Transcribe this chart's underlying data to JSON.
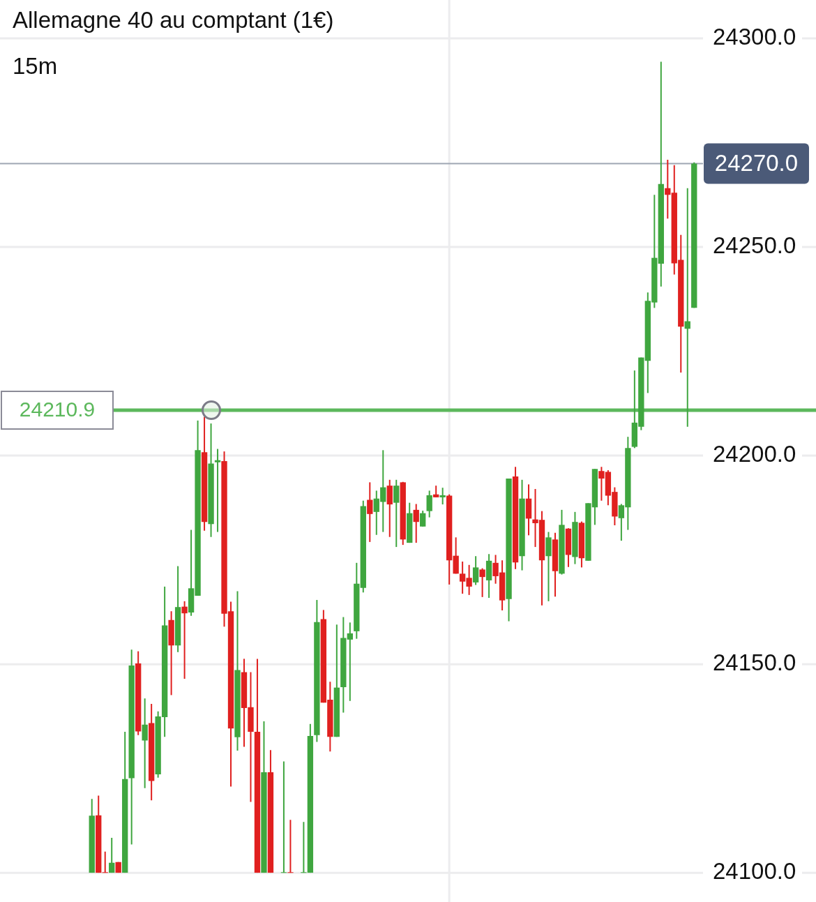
{
  "chart_data": {
    "type": "candlestick",
    "title": "Allemagne 40 au comptant (1€)",
    "subtitle": "15m",
    "categories": [
      null,
      null,
      null,
      null,
      null,
      null,
      null,
      null,
      null,
      null,
      null,
      null,
      null,
      null,
      null,
      null,
      null,
      null,
      null,
      null,
      null,
      null,
      null,
      null,
      null,
      null,
      null,
      null,
      null,
      null,
      null,
      null,
      null,
      null,
      null,
      null,
      null,
      null,
      null,
      null,
      null,
      null,
      null,
      null,
      null,
      null,
      null,
      null,
      null,
      null,
      null,
      null,
      null,
      null,
      null,
      null,
      null,
      null,
      null,
      null,
      null,
      null,
      null,
      null,
      null,
      null,
      null,
      null,
      null,
      null,
      null,
      null,
      null,
      null,
      null,
      null,
      null,
      null,
      null,
      null,
      null,
      null,
      null,
      null,
      null,
      null,
      null,
      null,
      null,
      null,
      null,
      null
    ],
    "ohlc": [
      [
        24100,
        24117.7,
        24100,
        24113.7
      ],
      [
        24113.8,
        24118.5,
        24100,
        24100
      ],
      [
        24100,
        24105.1,
        24100,
        24100
      ],
      [
        24100,
        24108.4,
        24100,
        24102.4
      ],
      [
        24102.6,
        24102.6,
        24100,
        24100
      ],
      [
        24100,
        24133.8,
        24100,
        24122.5
      ],
      [
        24122.7,
        24153.5,
        24106.8,
        24149.7
      ],
      [
        24150.2,
        24153.1,
        24133.0,
        24133.9
      ],
      [
        24131.7,
        24141.8,
        24120.3,
        24135.5
      ],
      [
        24135.9,
        24140.5,
        24117.4,
        24122.0
      ],
      [
        24123.6,
        24138.7,
        24122.8,
        24137.5
      ],
      [
        24137.3,
        24168.6,
        24132.6,
        24159.3
      ],
      [
        24160.6,
        24162.7,
        24142.6,
        24154.5
      ],
      [
        24154.5,
        24173.5,
        24152.9,
        24163.7
      ],
      [
        24163.8,
        24165.1,
        24146.5,
        24162.2
      ],
      [
        24162.4,
        24182.2,
        24161.6,
        24168.2
      ],
      [
        24166.4,
        24208.4,
        24166.4,
        24201.3
      ],
      [
        24200.8,
        24209.3,
        24182.0,
        24184.1
      ],
      [
        24183.6,
        24207.7,
        24180.5,
        24198.1
      ],
      [
        24198.4,
        24201.6,
        24181.7,
        24198.9
      ],
      [
        24198.7,
        24201.0,
        24159.0,
        24162.1
      ],
      [
        24162.7,
        24165.0,
        24120.7,
        24134.6
      ],
      [
        24132.5,
        24167.5,
        24129.3,
        24148.6
      ],
      [
        24148.1,
        24151.3,
        24130.2,
        24139.5
      ],
      [
        24139.7,
        24148.1,
        24117.0,
        24133.8
      ],
      [
        24133.8,
        24151.3,
        24100,
        24100
      ],
      [
        24100,
        24136.3,
        24100,
        24124.1
      ],
      [
        24124.1,
        24129.4,
        24100,
        24100
      ],
      null,
      [
        24100,
        24126.7,
        24100,
        24100
      ],
      [
        24100,
        24112.7,
        24100,
        24100
      ],
      null,
      [
        24100,
        24112.2,
        24100,
        24100
      ],
      [
        24100,
        24135.7,
        24100,
        24132.8
      ],
      [
        24133.0,
        24165.4,
        24131.4,
        24160.1
      ],
      [
        24160.8,
        24163.0,
        24140.8,
        24140.8
      ],
      [
        24141.5,
        24145.8,
        24129.1,
        24132.6
      ],
      [
        24132.6,
        24159.5,
        24132.6,
        24144.4
      ],
      [
        24144.5,
        24161.3,
        24138.4,
        24156.3
      ],
      [
        24155.9,
        24160.0,
        24141.2,
        24157.4
      ],
      [
        24157.9,
        24174.3,
        24156.1,
        24169.3
      ],
      [
        24168.3,
        24189.2,
        24167.2,
        24187.9
      ],
      [
        24189.4,
        24193.6,
        24179.3,
        24186.0
      ],
      [
        24186.5,
        24191.6,
        24181.0,
        24189.7
      ],
      [
        24188.9,
        24201.3,
        24181.7,
        24192.4
      ],
      [
        24192.8,
        24194.2,
        24180.5,
        24188.3
      ],
      [
        24188.7,
        24194.2,
        24178.1,
        24192.8
      ],
      [
        24193.6,
        24193.7,
        24178.6,
        24179.9
      ],
      [
        24179.1,
        24188.7,
        24179.1,
        24186.2
      ],
      [
        24187.0,
        24188.4,
        24179.1,
        24184.1
      ],
      [
        24183.0,
        24186.8,
        24183.0,
        24186.2
      ],
      [
        24186.7,
        24191.6,
        24185.2,
        24190.5
      ],
      [
        24190.7,
        24192.8,
        24190.0,
        24190.0
      ],
      [
        24190.0,
        24192.3,
        24188.3,
        24190.5
      ],
      [
        24190.4,
        24190.7,
        24169.1,
        24174.9
      ],
      [
        24176.0,
        24180.4,
        24171.7,
        24171.7
      ],
      [
        24171.7,
        24174.6,
        24166.9,
        24169.8
      ],
      [
        24170.7,
        24173.8,
        24166.6,
        24168.6
      ],
      [
        24169.6,
        24175.9,
        24169.0,
        24173.2
      ],
      [
        24172.7,
        24173.0,
        24166.1,
        24170.9
      ],
      [
        24170.1,
        24176.4,
        24165.9,
        24174.8
      ],
      [
        24174.3,
        24176.2,
        24169.3,
        24171.1
      ],
      [
        24172.0,
        24174.9,
        24162.9,
        24165.3
      ],
      [
        24165.6,
        24194.5,
        24160.3,
        24194.5
      ],
      [
        24195.0,
        24197.3,
        24172.8,
        24174.4
      ],
      [
        24175.9,
        24194.2,
        24172.5,
        24189.7
      ],
      [
        24189.7,
        24193.1,
        24180.9,
        24184.9
      ],
      [
        24184.7,
        24192.0,
        24178.1,
        24183.8
      ],
      [
        24184.6,
        24186.7,
        24164.1,
        24174.9
      ],
      [
        24175.9,
        24181.7,
        24165.1,
        24180.4
      ],
      [
        24179.9,
        24181.5,
        24166.2,
        24172.3
      ],
      [
        24171.7,
        24187.0,
        24171.5,
        24183.4
      ],
      [
        24182.5,
        24182.6,
        24173.3,
        24176.2
      ],
      [
        24175.7,
        24186.5,
        24174.0,
        24184.1
      ],
      [
        24183.9,
        24184.2,
        24173.2,
        24175.4
      ],
      [
        24174.8,
        24188.6,
        24174.8,
        24188.6
      ],
      [
        24187.6,
        24196.8,
        24183.4,
        24196.8
      ],
      [
        24196.3,
        24197.3,
        24189.2,
        24194.5
      ],
      [
        24196.1,
        24196.5,
        24188.1,
        24190.4
      ],
      [
        24191.3,
        24192.4,
        24183.3,
        24185.4
      ],
      [
        24185.0,
        24188.4,
        24179.6,
        24188.1
      ],
      [
        24187.6,
        24204.5,
        24182.2,
        24201.8
      ],
      [
        24202.1,
        24220.4,
        24201.8,
        24207.9
      ],
      [
        24206.9,
        24223.5,
        24206.1,
        24223.5
      ],
      [
        24222.7,
        24239.1,
        24215.0,
        24237.1
      ],
      [
        24236.7,
        24262.5,
        24235.4,
        24247.4
      ],
      [
        24246.0,
        24294.4,
        24240.5,
        24265.1
      ],
      [
        24264.1,
        24270.9,
        24256.8,
        24262.5
      ],
      [
        24263.0,
        24269.6,
        24243.4,
        24246.1
      ],
      [
        24246.9,
        24252.9,
        24219.9,
        24230.9
      ],
      [
        24230.4,
        24264.1,
        24206.9,
        24232.2
      ],
      [
        24235.4,
        24270.3,
        24235.4,
        24270.0
      ]
    ],
    "colors": [
      "#3fa63f",
      "#e0201f",
      "#e0201f",
      "#3fa63f",
      "#e0201f",
      "#3fa63f",
      "#3fa63f",
      "#e0201f",
      "#3fa63f",
      "#e0201f",
      "#3fa63f",
      "#3fa63f",
      "#e0201f",
      "#3fa63f",
      "#e0201f",
      "#3fa63f",
      "#3fa63f",
      "#e0201f",
      "#3fa63f",
      "#3fa63f",
      "#e0201f",
      "#e0201f",
      "#3fa63f",
      "#e0201f",
      "#e0201f",
      "#e0201f",
      "#3fa63f",
      "#e0201f",
      null,
      "#3fa63f",
      "#e0201f",
      null,
      "#3fa63f",
      "#3fa63f",
      "#3fa63f",
      "#e0201f",
      "#e0201f",
      "#3fa63f",
      "#3fa63f",
      "#3fa63f",
      "#3fa63f",
      "#3fa63f",
      "#e0201f",
      "#3fa63f",
      "#3fa63f",
      "#e0201f",
      "#3fa63f",
      "#e0201f",
      "#3fa63f",
      "#e0201f",
      "#3fa63f",
      "#3fa63f",
      "#e0201f",
      "#3fa63f",
      "#e0201f",
      "#e0201f",
      "#e0201f",
      "#e0201f",
      "#3fa63f",
      "#e0201f",
      "#3fa63f",
      "#e0201f",
      "#e0201f",
      "#3fa63f",
      "#e0201f",
      "#3fa63f",
      "#e0201f",
      "#e0201f",
      "#e0201f",
      "#3fa63f",
      "#e0201f",
      "#3fa63f",
      "#e0201f",
      "#3fa63f",
      "#e0201f",
      "#3fa63f",
      "#3fa63f",
      "#e0201f",
      "#e0201f",
      "#e0201f",
      "#3fa63f",
      "#3fa63f",
      "#3fa63f",
      "#3fa63f",
      "#3fa63f",
      "#3fa63f",
      "#3fa63f",
      "#e0201f",
      "#e0201f",
      "#e0201f",
      "#3fa63f",
      "#3fa63f"
    ],
    "ylim": [
      24100,
      24300
    ],
    "yticks": [
      {
        "value": 24100,
        "label": "24100.0"
      },
      {
        "value": 24150,
        "label": "24150.0"
      },
      {
        "value": 24200,
        "label": "24200.0"
      },
      {
        "value": 24250,
        "label": "24250.0"
      },
      {
        "value": 24300,
        "label": "24300.0"
      }
    ],
    "grid": "y",
    "tick_labels": "y",
    "ref_lines": [
      {
        "axis": "y",
        "value": 24270.0,
        "label": "24270.0",
        "color": "#9ea6b3"
      },
      {
        "axis": "y",
        "value": 24210.9,
        "label": "24210.9",
        "color": "#5cb85c"
      }
    ]
  }
}
